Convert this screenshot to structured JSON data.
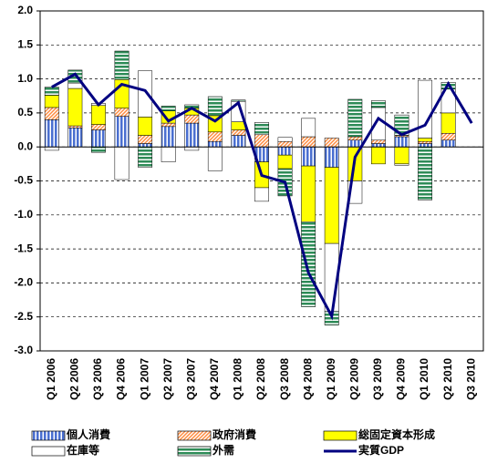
{
  "chart_data": {
    "type": "bar",
    "categories": [
      "Q1 2006",
      "Q2 2006",
      "Q3 2006",
      "Q4 2006",
      "Q1 2007",
      "Q2 2007",
      "Q3 2007",
      "Q4 2007",
      "Q1 2008",
      "Q2 2008",
      "Q3 2008",
      "Q4 2008",
      "Q1 2009",
      "Q2 2009",
      "Q3 2009",
      "Q4 2009",
      "Q1 2010",
      "Q2 2010",
      "Q3 2010"
    ],
    "series": [
      {
        "name": "個人消費",
        "color": "#4a6fd0",
        "pattern": "vertical",
        "values": [
          0.4,
          0.28,
          0.25,
          0.45,
          0.05,
          0.3,
          0.35,
          0.08,
          0.17,
          -0.22,
          -0.12,
          -0.28,
          -0.3,
          0.1,
          0.05,
          0.15,
          0.05,
          0.1,
          null
        ]
      },
      {
        "name": "政府消費",
        "color": "#ff8c40",
        "pattern": "diagonal",
        "values": [
          0.18,
          0.03,
          0.08,
          0.12,
          0.12,
          0.05,
          0.12,
          0.14,
          0.08,
          0.18,
          0.08,
          0.15,
          0.13,
          0.05,
          0.05,
          0.02,
          0.03,
          0.1,
          null
        ]
      },
      {
        "name": "総固定資本形成",
        "color": "#ffff00",
        "pattern": "solid",
        "values": [
          0.18,
          0.55,
          0.28,
          0.42,
          0.27,
          0.18,
          0.1,
          0.24,
          0.12,
          -0.38,
          -0.2,
          -0.82,
          -1.12,
          -0.5,
          -0.25,
          -0.25,
          0.05,
          0.3,
          null
        ]
      },
      {
        "name": "在庫等",
        "color": "#ffffff",
        "pattern": "solid",
        "values": [
          -0.05,
          0.08,
          0.03,
          -0.48,
          0.68,
          -0.22,
          -0.05,
          -0.35,
          0.3,
          -0.2,
          0.06,
          0.27,
          -1.0,
          -0.33,
          0.48,
          -0.02,
          0.85,
          0.35,
          null
        ]
      },
      {
        "name": "外需",
        "color": "#2e8b57",
        "pattern": "horizontal",
        "values": [
          0.12,
          0.19,
          -0.08,
          0.42,
          -0.3,
          0.07,
          0.05,
          0.28,
          0.02,
          0.18,
          -0.4,
          -1.25,
          -0.2,
          0.55,
          0.1,
          0.3,
          -0.78,
          0.1,
          null
        ]
      },
      {
        "name": "実質GDP",
        "color": "#000080",
        "type": "line",
        "values": [
          0.88,
          1.07,
          0.62,
          0.92,
          0.83,
          0.38,
          0.57,
          0.38,
          0.65,
          -0.42,
          -0.52,
          -1.85,
          -2.49,
          -0.15,
          0.42,
          0.18,
          0.32,
          0.93,
          0.35
        ]
      }
    ],
    "ylim": [
      -3,
      2
    ],
    "yticks": [
      {
        "value": -3,
        "label": "-3.0"
      },
      {
        "value": -2.5,
        "label": "-2.5"
      },
      {
        "value": -2,
        "label": "-2.0"
      },
      {
        "value": -1.5,
        "label": "-1.5"
      },
      {
        "value": -1,
        "label": "-1.0"
      },
      {
        "value": -0.5,
        "label": "-0.5"
      },
      {
        "value": 0,
        "label": "0.0"
      },
      {
        "value": 0.5,
        "label": "0.5"
      },
      {
        "value": 1,
        "label": "1.0"
      },
      {
        "value": 1.5,
        "label": "1.5"
      },
      {
        "value": 2,
        "label": "2.0"
      }
    ],
    "grid": true
  }
}
